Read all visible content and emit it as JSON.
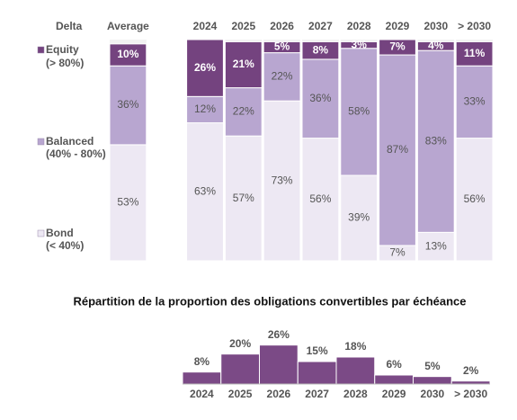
{
  "chart_data": [
    {
      "type": "stacked_bar",
      "header": "Delta",
      "categories": [
        "Average",
        null,
        "2024",
        "2025",
        "2026",
        "2027",
        "2028",
        "2029",
        "2030",
        "> 2030"
      ],
      "series": [
        {
          "name": "Equity",
          "range": "(> 80%)",
          "color": "#74437f",
          "label_color": "#ffffff",
          "values": [
            10,
            null,
            26,
            21,
            5,
            8,
            3,
            7,
            4,
            11
          ],
          "value_labels": [
            "10%",
            null,
            "26%",
            "21%",
            "5%",
            "8%",
            "3%",
            "7%",
            "4%",
            "11%"
          ]
        },
        {
          "name": "Balanced",
          "range": "(40% - 80%)",
          "color": "#b8a6d0",
          "label_color": "#555555",
          "values": [
            36,
            null,
            12,
            22,
            22,
            36,
            58,
            87,
            83,
            33
          ],
          "value_labels": [
            "36%",
            null,
            "12%",
            "22%",
            "22%",
            "36%",
            "58%",
            "87%",
            "83%",
            "33%"
          ]
        },
        {
          "name": "Bond",
          "range": "(< 40%)",
          "color": "#ede8f3",
          "label_color": "#555555",
          "values": [
            53,
            null,
            63,
            57,
            73,
            56,
            39,
            7,
            13,
            56
          ],
          "value_labels": [
            "53%",
            null,
            "63%",
            "57%",
            "73%",
            "56%",
            "39%",
            "7%",
            "13%",
            "56%"
          ]
        }
      ],
      "ylim": [
        0,
        101
      ]
    },
    {
      "type": "bar",
      "title": "Répartition de la proportion des obligations convertibles par échéance",
      "categories": [
        "2024",
        "2025",
        "2026",
        "2027",
        "2028",
        "2029",
        "2030",
        "> 2030"
      ],
      "values": [
        8,
        20,
        26,
        15,
        18,
        6,
        5,
        2
      ],
      "value_labels": [
        "8%",
        "20%",
        "26%",
        "15%",
        "18%",
        "6%",
        "5%",
        "2%"
      ],
      "color": "#7b4a86",
      "ylim": [
        0,
        30
      ]
    }
  ]
}
